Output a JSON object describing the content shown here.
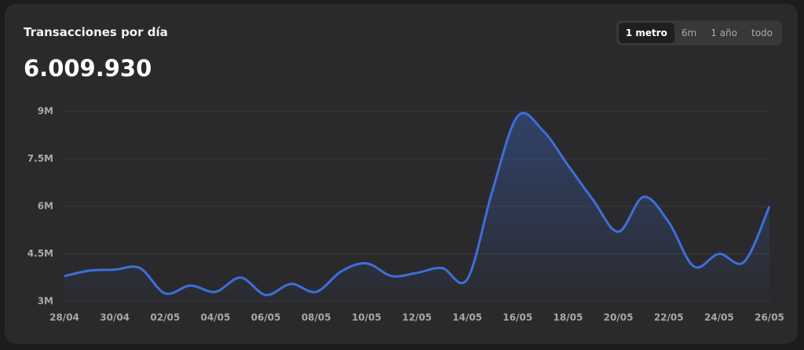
{
  "chart_data": {
    "type": "line",
    "title": "Transacciones por día",
    "total": "6.009.930",
    "ranges": [
      "1 metro",
      "6m",
      "1 año",
      "todo"
    ],
    "active_range": "1 metro",
    "categories": [
      "28/04",
      null,
      "30/04",
      null,
      "02/05",
      null,
      "04/05",
      null,
      "06/05",
      null,
      "08/05",
      null,
      "10/05",
      null,
      "12/05",
      null,
      "14/05",
      null,
      "16/05",
      null,
      "18/05",
      null,
      "20/05",
      null,
      "22/05",
      null,
      "24/05",
      null,
      "26/05"
    ],
    "series": [
      {
        "name": "Transacciones",
        "color": "#3d6fd9",
        "values": [
          3800000,
          3970000,
          4000000,
          4050000,
          3250000,
          3500000,
          3300000,
          3750000,
          3200000,
          3550000,
          3300000,
          3950000,
          4200000,
          3800000,
          3900000,
          4050000,
          3700000,
          6500000,
          8850000,
          8400000,
          7300000,
          6200000,
          5200000,
          6300000,
          5500000,
          4100000,
          4500000,
          4250000,
          6000000
        ]
      }
    ],
    "ylim": [
      3000000,
      9000000
    ],
    "yticks": [
      {
        "value": 3000000,
        "label": "3M"
      },
      {
        "value": 4500000,
        "label": "4.5M"
      },
      {
        "value": 6000000,
        "label": "6M"
      },
      {
        "value": 7500000,
        "label": "7.5M"
      },
      {
        "value": 9000000,
        "label": "9M"
      }
    ],
    "grid": true
  }
}
